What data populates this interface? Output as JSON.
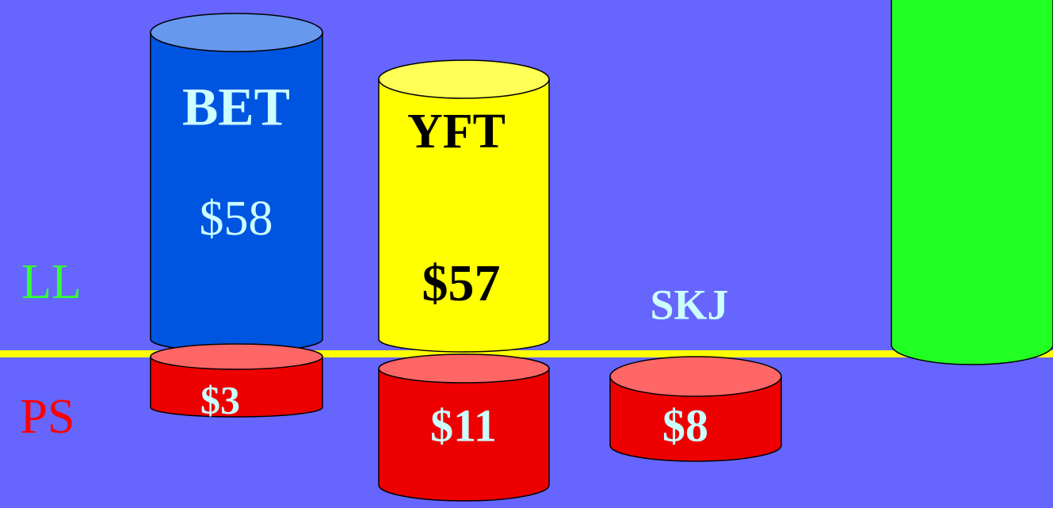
{
  "row_labels": {
    "longline": "LL",
    "purse_seine": "PS"
  },
  "longline": {
    "bet": {
      "label": "BET",
      "value": "$58"
    },
    "yft": {
      "label": "YFT",
      "value": "$57"
    }
  },
  "purse_seine": {
    "skj": {
      "label": "SKJ",
      "value": "$8"
    },
    "bet": {
      "value": "$3"
    },
    "yft": {
      "value": "$11"
    }
  }
}
